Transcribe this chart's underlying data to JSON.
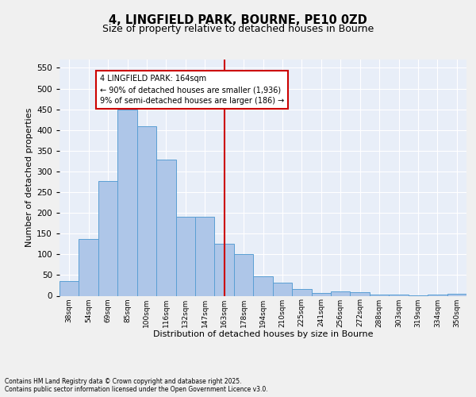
{
  "title": "4, LINGFIELD PARK, BOURNE, PE10 0ZD",
  "subtitle": "Size of property relative to detached houses in Bourne",
  "xlabel": "Distribution of detached houses by size in Bourne",
  "ylabel": "Number of detached properties",
  "bar_labels": [
    "38sqm",
    "54sqm",
    "69sqm",
    "85sqm",
    "100sqm",
    "116sqm",
    "132sqm",
    "147sqm",
    "163sqm",
    "178sqm",
    "194sqm",
    "210sqm",
    "225sqm",
    "241sqm",
    "256sqm",
    "272sqm",
    "288sqm",
    "303sqm",
    "319sqm",
    "334sqm",
    "350sqm"
  ],
  "bar_values": [
    35,
    137,
    277,
    450,
    410,
    328,
    190,
    190,
    125,
    100,
    46,
    31,
    17,
    6,
    10,
    9,
    3,
    2,
    1,
    2,
    4
  ],
  "bar_color": "#aec6e8",
  "bar_edge_color": "#5a9fd4",
  "vline_index": 8,
  "vline_color": "#cc0000",
  "annotation_text": "4 LINGFIELD PARK: 164sqm\n← 90% of detached houses are smaller (1,936)\n9% of semi-detached houses are larger (186) →",
  "annotation_box_color": "#ffffff",
  "annotation_box_edge": "#cc0000",
  "ylim": [
    0,
    570
  ],
  "yticks": [
    0,
    50,
    100,
    150,
    200,
    250,
    300,
    350,
    400,
    450,
    500,
    550
  ],
  "bg_color": "#e8eef8",
  "grid_color": "#ffffff",
  "fig_bg_color": "#f0f0f0",
  "footer_line1": "Contains HM Land Registry data © Crown copyright and database right 2025.",
  "footer_line2": "Contains public sector information licensed under the Open Government Licence v3.0."
}
